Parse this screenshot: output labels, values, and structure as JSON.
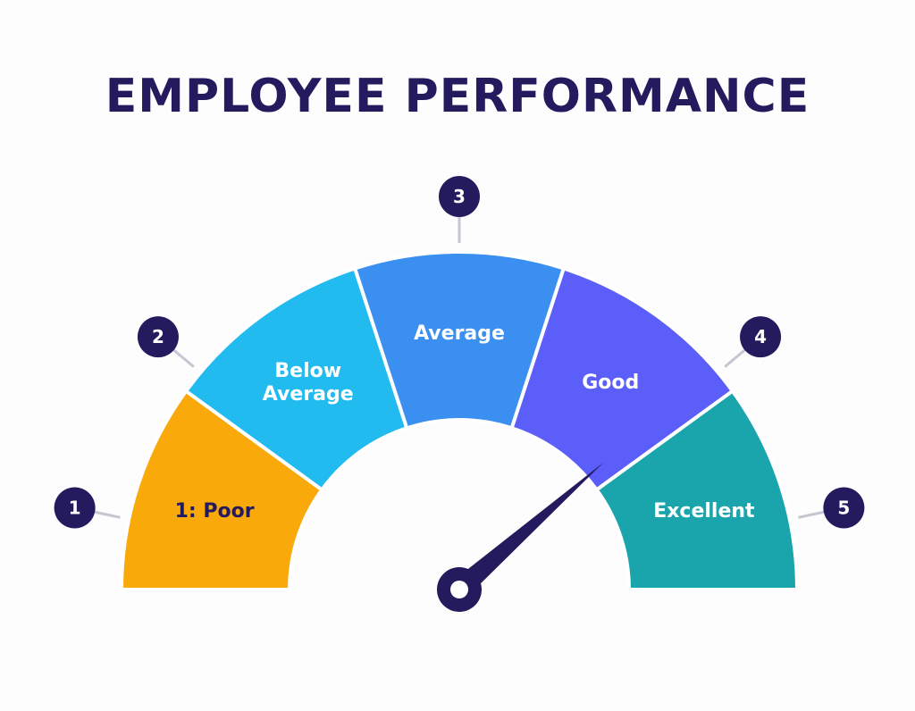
{
  "title": "EMPLOYEE PERFORMANCE",
  "chart_data": {
    "type": "gauge",
    "title": "EMPLOYEE PERFORMANCE",
    "segments": [
      {
        "marker": "1",
        "label_lines": [
          "1: Poor"
        ],
        "color": "#f9a90a",
        "label_color": "#241a5e"
      },
      {
        "marker": "2",
        "label_lines": [
          "Below",
          "Average"
        ],
        "color": "#22bbef",
        "label_color": "#ffffff"
      },
      {
        "marker": "3",
        "label_lines": [
          "Average"
        ],
        "color": "#3a8ff0",
        "label_color": "#ffffff"
      },
      {
        "marker": "4",
        "label_lines": [
          "Good"
        ],
        "color": "#5b5ef8",
        "label_color": "#ffffff"
      },
      {
        "marker": "5",
        "label_lines": [
          "Excellent"
        ],
        "color": "#1aa5ad",
        "label_color": "#ffffff"
      }
    ],
    "scale_min": 0,
    "scale_max": 5,
    "needle_value": 3.85,
    "needle_color": "#241a5e",
    "marker_color": "#241a5e"
  }
}
